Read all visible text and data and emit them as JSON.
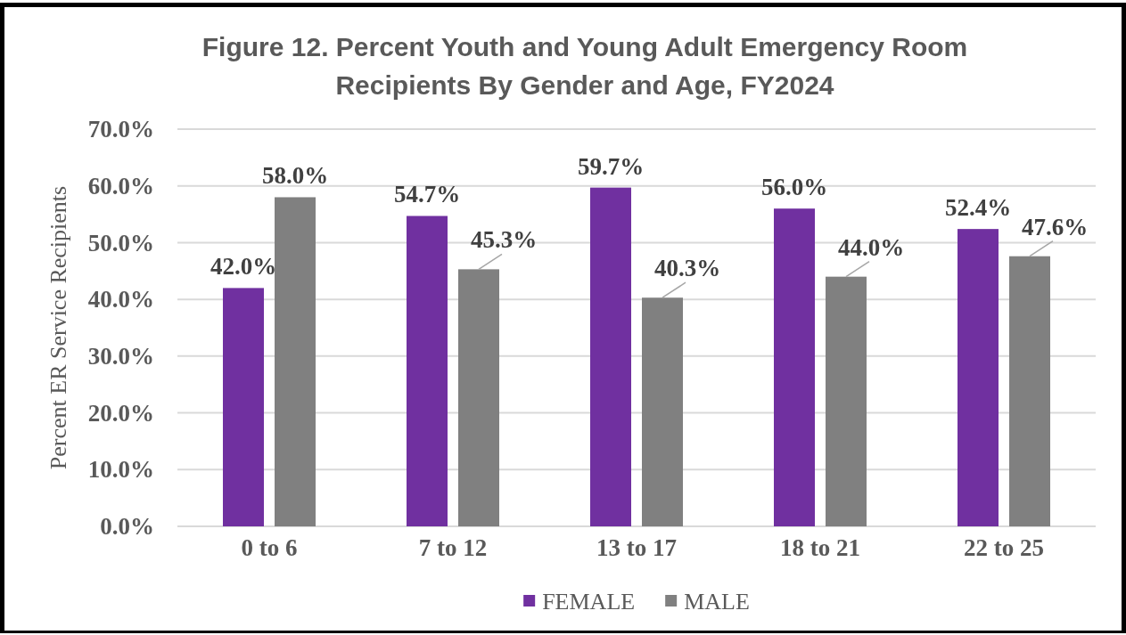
{
  "chart_data": {
    "type": "bar",
    "title": "Figure 12. Percent Youth and Young Adult Emergency Room Recipients By Gender and Age, FY2024",
    "ylabel": "Percent ER Service Recipients",
    "categories": [
      "0 to 6",
      "7 to 12",
      "13 to 17",
      "18 to 21",
      "22 to 25"
    ],
    "series": [
      {
        "name": "FEMALE",
        "color": "#7030a0",
        "values": [
          42.0,
          54.7,
          59.7,
          56.0,
          52.4
        ],
        "value_labels": [
          "42.0%",
          "54.7%",
          "59.7%",
          "56.0%",
          "52.4%"
        ]
      },
      {
        "name": "MALE",
        "color": "#808080",
        "values": [
          58.0,
          45.3,
          40.3,
          44.0,
          47.6
        ],
        "value_labels": [
          "58.0%",
          "45.3%",
          "40.3%",
          "44.0%",
          "47.6%"
        ]
      }
    ],
    "ylim": [
      0,
      70
    ],
    "yticks": [
      {
        "value": 0,
        "label": "0.0%"
      },
      {
        "value": 10,
        "label": "10.0%"
      },
      {
        "value": 20,
        "label": "20.0%"
      },
      {
        "value": 30,
        "label": "30.0%"
      },
      {
        "value": 40,
        "label": "40.0%"
      },
      {
        "value": 50,
        "label": "50.0%"
      },
      {
        "value": 60,
        "label": "60.0%"
      },
      {
        "value": 70,
        "label": "70.0%"
      }
    ],
    "grid": "y",
    "legend": "bottom"
  }
}
